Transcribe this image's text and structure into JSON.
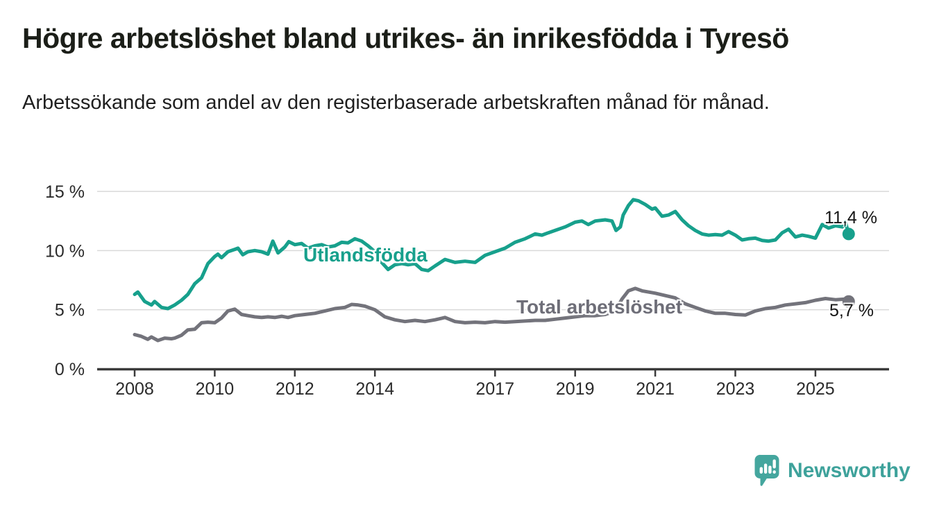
{
  "chart_data": {
    "type": "line",
    "title": "Högre arbetslöshet bland utrikes- än inrikesfödda i Tyresö",
    "subtitle": "Arbetssökande som andel av den registerbaserade arbetskraften månad för månad.",
    "unit": "%",
    "grid": "horizontal",
    "xlim": [
      2007.95,
      2026.85
    ],
    "ylim": [
      0,
      15.5
    ],
    "x_ticks": [
      2008,
      2010,
      2012,
      2014,
      2017,
      2019,
      2021,
      2023,
      2025
    ],
    "y_ticks": [
      {
        "value": 0,
        "label": "0 %"
      },
      {
        "value": 5,
        "label": "5 %"
      },
      {
        "value": 10,
        "label": "10 %"
      },
      {
        "value": 15,
        "label": "15 %"
      }
    ],
    "series": [
      {
        "id": "utlandsfodda",
        "name": "Utlandsfödda",
        "color": "#17A08C",
        "end_label": "11,4 %",
        "end_value": 11.4,
        "points": [
          [
            2008.0,
            6.3
          ],
          [
            2008.08,
            6.5
          ],
          [
            2008.25,
            5.7
          ],
          [
            2008.42,
            5.4
          ],
          [
            2008.5,
            5.7
          ],
          [
            2008.67,
            5.2
          ],
          [
            2008.83,
            5.1
          ],
          [
            2009.0,
            5.4
          ],
          [
            2009.17,
            5.8
          ],
          [
            2009.33,
            6.3
          ],
          [
            2009.5,
            7.2
          ],
          [
            2009.67,
            7.7
          ],
          [
            2009.83,
            8.9
          ],
          [
            2010.0,
            9.5
          ],
          [
            2010.08,
            9.7
          ],
          [
            2010.17,
            9.4
          ],
          [
            2010.33,
            9.9
          ],
          [
            2010.5,
            10.1
          ],
          [
            2010.58,
            10.2
          ],
          [
            2010.7,
            9.65
          ],
          [
            2010.83,
            9.9
          ],
          [
            2011.0,
            10.0
          ],
          [
            2011.17,
            9.9
          ],
          [
            2011.33,
            9.7
          ],
          [
            2011.45,
            10.8
          ],
          [
            2011.58,
            9.8
          ],
          [
            2011.75,
            10.3
          ],
          [
            2011.85,
            10.75
          ],
          [
            2012.0,
            10.5
          ],
          [
            2012.17,
            10.6
          ],
          [
            2012.33,
            10.2
          ],
          [
            2012.5,
            10.4
          ],
          [
            2012.67,
            10.5
          ],
          [
            2012.83,
            10.3
          ],
          [
            2013.0,
            10.4
          ],
          [
            2013.17,
            10.7
          ],
          [
            2013.33,
            10.65
          ],
          [
            2013.5,
            11.0
          ],
          [
            2013.67,
            10.8
          ],
          [
            2013.83,
            10.4
          ],
          [
            2014.0,
            9.9
          ],
          [
            2014.17,
            9.0
          ],
          [
            2014.33,
            8.4
          ],
          [
            2014.5,
            8.8
          ],
          [
            2014.67,
            8.9
          ],
          [
            2014.83,
            8.8
          ],
          [
            2015.0,
            8.9
          ],
          [
            2015.17,
            8.4
          ],
          [
            2015.33,
            8.3
          ],
          [
            2015.5,
            8.7
          ],
          [
            2015.75,
            9.25
          ],
          [
            2016.0,
            9.0
          ],
          [
            2016.25,
            9.1
          ],
          [
            2016.5,
            9.0
          ],
          [
            2016.75,
            9.6
          ],
          [
            2017.0,
            9.9
          ],
          [
            2017.25,
            10.2
          ],
          [
            2017.5,
            10.7
          ],
          [
            2017.75,
            11.0
          ],
          [
            2018.0,
            11.4
          ],
          [
            2018.17,
            11.3
          ],
          [
            2018.33,
            11.5
          ],
          [
            2018.5,
            11.7
          ],
          [
            2018.75,
            12.0
          ],
          [
            2019.0,
            12.4
          ],
          [
            2019.17,
            12.5
          ],
          [
            2019.33,
            12.2
          ],
          [
            2019.5,
            12.5
          ],
          [
            2019.75,
            12.6
          ],
          [
            2019.92,
            12.5
          ],
          [
            2020.02,
            11.7
          ],
          [
            2020.13,
            12.0
          ],
          [
            2020.2,
            13.0
          ],
          [
            2020.33,
            13.8
          ],
          [
            2020.45,
            14.3
          ],
          [
            2020.58,
            14.2
          ],
          [
            2020.75,
            13.9
          ],
          [
            2020.92,
            13.5
          ],
          [
            2021.0,
            13.6
          ],
          [
            2021.17,
            12.9
          ],
          [
            2021.33,
            13.0
          ],
          [
            2021.5,
            13.3
          ],
          [
            2021.67,
            12.6
          ],
          [
            2021.83,
            12.1
          ],
          [
            2022.0,
            11.7
          ],
          [
            2022.17,
            11.4
          ],
          [
            2022.33,
            11.3
          ],
          [
            2022.5,
            11.35
          ],
          [
            2022.67,
            11.3
          ],
          [
            2022.83,
            11.6
          ],
          [
            2023.0,
            11.3
          ],
          [
            2023.17,
            10.9
          ],
          [
            2023.33,
            11.0
          ],
          [
            2023.5,
            11.05
          ],
          [
            2023.67,
            10.85
          ],
          [
            2023.83,
            10.8
          ],
          [
            2024.0,
            10.9
          ],
          [
            2024.17,
            11.5
          ],
          [
            2024.33,
            11.8
          ],
          [
            2024.5,
            11.15
          ],
          [
            2024.67,
            11.3
          ],
          [
            2024.83,
            11.2
          ],
          [
            2025.0,
            11.05
          ],
          [
            2025.17,
            12.2
          ],
          [
            2025.33,
            11.9
          ],
          [
            2025.5,
            12.1
          ],
          [
            2025.67,
            12.0
          ],
          [
            2025.75,
            12.4
          ],
          [
            2025.83,
            11.4
          ]
        ]
      },
      {
        "id": "total",
        "name": "Total arbetslöshet",
        "color": "#73737B",
        "end_label": "5,7 %",
        "end_value": 5.7,
        "points": [
          [
            2008.0,
            2.9
          ],
          [
            2008.17,
            2.75
          ],
          [
            2008.33,
            2.5
          ],
          [
            2008.42,
            2.7
          ],
          [
            2008.58,
            2.4
          ],
          [
            2008.75,
            2.6
          ],
          [
            2008.92,
            2.55
          ],
          [
            2009.0,
            2.6
          ],
          [
            2009.17,
            2.85
          ],
          [
            2009.33,
            3.3
          ],
          [
            2009.5,
            3.35
          ],
          [
            2009.67,
            3.9
          ],
          [
            2009.83,
            3.95
          ],
          [
            2010.0,
            3.9
          ],
          [
            2010.17,
            4.3
          ],
          [
            2010.33,
            4.9
          ],
          [
            2010.5,
            5.05
          ],
          [
            2010.67,
            4.6
          ],
          [
            2010.83,
            4.5
          ],
          [
            2011.0,
            4.4
          ],
          [
            2011.17,
            4.35
          ],
          [
            2011.33,
            4.4
          ],
          [
            2011.5,
            4.35
          ],
          [
            2011.67,
            4.45
          ],
          [
            2011.83,
            4.35
          ],
          [
            2012.0,
            4.5
          ],
          [
            2012.25,
            4.6
          ],
          [
            2012.5,
            4.7
          ],
          [
            2012.75,
            4.9
          ],
          [
            2013.0,
            5.1
          ],
          [
            2013.25,
            5.2
          ],
          [
            2013.42,
            5.45
          ],
          [
            2013.58,
            5.4
          ],
          [
            2013.75,
            5.3
          ],
          [
            2014.0,
            5.0
          ],
          [
            2014.25,
            4.4
          ],
          [
            2014.5,
            4.15
          ],
          [
            2014.75,
            4.0
          ],
          [
            2015.0,
            4.1
          ],
          [
            2015.25,
            4.0
          ],
          [
            2015.5,
            4.15
          ],
          [
            2015.75,
            4.35
          ],
          [
            2016.0,
            4.0
          ],
          [
            2016.25,
            3.9
          ],
          [
            2016.5,
            3.95
          ],
          [
            2016.75,
            3.9
          ],
          [
            2017.0,
            4.0
          ],
          [
            2017.25,
            3.95
          ],
          [
            2017.5,
            4.0
          ],
          [
            2017.75,
            4.05
          ],
          [
            2018.0,
            4.1
          ],
          [
            2018.25,
            4.1
          ],
          [
            2018.5,
            4.2
          ],
          [
            2018.75,
            4.3
          ],
          [
            2019.0,
            4.4
          ],
          [
            2019.25,
            4.5
          ],
          [
            2019.5,
            4.5
          ],
          [
            2019.75,
            4.6
          ],
          [
            2020.0,
            4.9
          ],
          [
            2020.17,
            5.9
          ],
          [
            2020.33,
            6.6
          ],
          [
            2020.5,
            6.8
          ],
          [
            2020.67,
            6.6
          ],
          [
            2020.83,
            6.5
          ],
          [
            2021.0,
            6.4
          ],
          [
            2021.25,
            6.2
          ],
          [
            2021.5,
            6.0
          ],
          [
            2021.75,
            5.5
          ],
          [
            2022.0,
            5.2
          ],
          [
            2022.25,
            4.9
          ],
          [
            2022.5,
            4.7
          ],
          [
            2022.75,
            4.7
          ],
          [
            2023.0,
            4.6
          ],
          [
            2023.25,
            4.55
          ],
          [
            2023.5,
            4.9
          ],
          [
            2023.75,
            5.1
          ],
          [
            2024.0,
            5.2
          ],
          [
            2024.25,
            5.4
          ],
          [
            2024.5,
            5.5
          ],
          [
            2024.75,
            5.6
          ],
          [
            2025.0,
            5.8
          ],
          [
            2025.25,
            5.95
          ],
          [
            2025.5,
            5.85
          ],
          [
            2025.75,
            5.9
          ],
          [
            2025.83,
            5.7
          ]
        ]
      }
    ]
  },
  "branding": {
    "name": "Newsworthy"
  }
}
